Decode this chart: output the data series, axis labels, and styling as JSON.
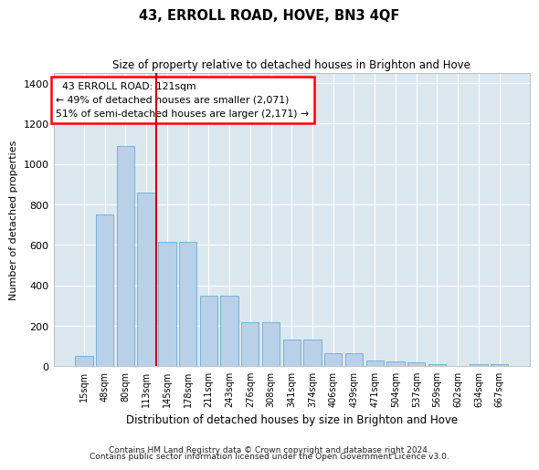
{
  "title": "43, ERROLL ROAD, HOVE, BN3 4QF",
  "subtitle": "Size of property relative to detached houses in Brighton and Hove",
  "xlabel": "Distribution of detached houses by size in Brighton and Hove",
  "ylabel": "Number of detached properties",
  "footer1": "Contains HM Land Registry data © Crown copyright and database right 2024.",
  "footer2": "Contains public sector information licensed under the Open Government Licence v3.0.",
  "annotation_line1": "43 ERROLL ROAD: 121sqm",
  "annotation_line2": "← 49% of detached houses are smaller (2,071)",
  "annotation_line3": "51% of semi-detached houses are larger (2,171) →",
  "bar_color": "#b8d0e8",
  "bar_edge_color": "#6aaad4",
  "vline_color": "#cc0000",
  "bg_color": "#dce8f0",
  "grid_color": "#ffffff",
  "categories": [
    "15sqm",
    "48sqm",
    "80sqm",
    "113sqm",
    "145sqm",
    "178sqm",
    "211sqm",
    "243sqm",
    "276sqm",
    "308sqm",
    "341sqm",
    "374sqm",
    "406sqm",
    "439sqm",
    "471sqm",
    "504sqm",
    "537sqm",
    "569sqm",
    "602sqm",
    "634sqm",
    "667sqm"
  ],
  "values": [
    50,
    750,
    1090,
    860,
    615,
    615,
    350,
    350,
    220,
    220,
    135,
    135,
    65,
    65,
    30,
    25,
    20,
    10,
    0,
    10,
    10
  ],
  "vline_x_idx": 3.5,
  "ylim": [
    0,
    1450
  ],
  "yticks": [
    0,
    200,
    400,
    600,
    800,
    1000,
    1200,
    1400
  ]
}
